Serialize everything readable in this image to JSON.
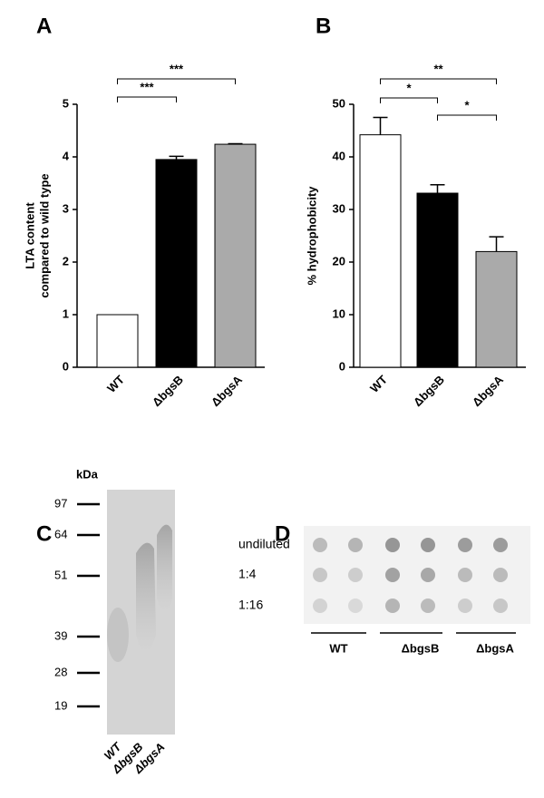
{
  "chart_data": [
    {
      "type": "bar",
      "panel": "A",
      "ylabel": [
        "LTA content",
        "compared to wild type"
      ],
      "categories": [
        "WT",
        "ΔbgsB",
        "ΔbgsA"
      ],
      "values": [
        1,
        3.95,
        4.24
      ],
      "errors": [
        0,
        0.06,
        0.01
      ],
      "colors": [
        "#ffffff",
        "#000000",
        "#aaaaaa"
      ],
      "ylim": [
        0,
        5
      ],
      "yticks": [
        0,
        1,
        2,
        3,
        4,
        5
      ],
      "annotations": [
        {
          "from": 0,
          "to": 1,
          "label": "***"
        },
        {
          "from": 0,
          "to": 2,
          "label": "***"
        }
      ]
    },
    {
      "type": "bar",
      "panel": "B",
      "ylabel": [
        "% hydrophobicity"
      ],
      "categories": [
        "WT",
        "ΔbgsB",
        "ΔbgsA"
      ],
      "values": [
        44.2,
        33.1,
        22
      ],
      "errors": [
        3.3,
        1.6,
        2.8
      ],
      "colors": [
        "#ffffff",
        "#000000",
        "#aaaaaa"
      ],
      "ylim": [
        0,
        50
      ],
      "yticks": [
        0,
        10,
        20,
        30,
        40,
        50
      ],
      "annotations": [
        {
          "from": 0,
          "to": 1,
          "label": "*"
        },
        {
          "from": 0,
          "to": 2,
          "label": "**"
        },
        {
          "from": 1,
          "to": 2,
          "label": "*"
        }
      ]
    }
  ],
  "panel_c": {
    "panel": "C",
    "unit": "kDa",
    "markers": [
      97,
      64,
      51,
      39,
      28,
      19
    ],
    "lanes": [
      "WT",
      "ΔbgsB",
      "ΔbgsA"
    ]
  },
  "panel_d": {
    "panel": "D",
    "rows": [
      "undiluted",
      "1:4",
      "1:16"
    ],
    "groups": [
      "WT",
      "ΔbgsB",
      "ΔbgsA"
    ]
  }
}
